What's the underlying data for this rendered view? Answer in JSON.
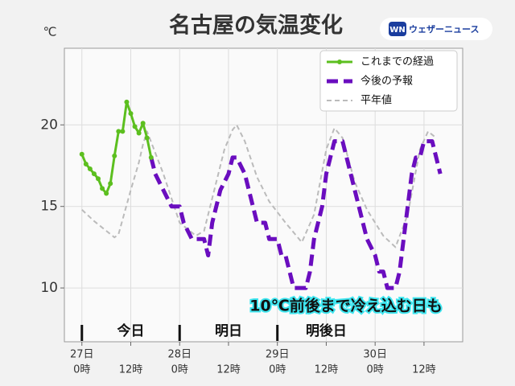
{
  "chart_data": {
    "type": "line",
    "title": "名古屋の気温変化",
    "y_unit": "℃",
    "brand": {
      "badge": "WN",
      "name": "ウェザーニュース"
    },
    "annotation": "10℃前後まで冷え込む日も",
    "xlim": [
      -4.3,
      93.5
    ],
    "ylim": [
      6.7,
      24.7
    ],
    "yticks": [
      10,
      15,
      20
    ],
    "xticks": [
      {
        "value": 0,
        "label": "0時"
      },
      {
        "value": 12,
        "label": "12時"
      },
      {
        "value": 24,
        "label": "0時"
      },
      {
        "value": 36,
        "label": "12時"
      },
      {
        "value": 48,
        "label": "0時"
      },
      {
        "value": 60,
        "label": "12時"
      },
      {
        "value": 72,
        "label": "0時"
      },
      {
        "value": 84,
        "label": "12時"
      }
    ],
    "day_ticks": [
      {
        "value": 0,
        "label": "27日"
      },
      {
        "value": 24,
        "label": "28日"
      },
      {
        "value": 48,
        "label": "29日"
      },
      {
        "value": 72,
        "label": "30日"
      }
    ],
    "bands": [
      {
        "label": "今日",
        "start": 0,
        "end": 24
      },
      {
        "label": "明日",
        "start": 24,
        "end": 48
      },
      {
        "label": "明後日",
        "start": 48,
        "end": 72
      }
    ],
    "grid": true,
    "legend": "upper right",
    "series": [
      {
        "name": "これまでの経過",
        "color": "#5cbf1f",
        "style": "solid",
        "markers": true,
        "x": [
          0,
          1,
          2,
          3,
          4,
          5,
          6,
          7,
          8,
          9,
          10,
          11,
          12,
          13,
          14,
          15,
          16,
          17
        ],
        "values": [
          18.2,
          17.6,
          17.3,
          17.0,
          16.7,
          16.1,
          15.8,
          16.4,
          18.1,
          19.6,
          19.6,
          21.4,
          20.7,
          19.9,
          19.5,
          20.1,
          19.2,
          18.0
        ]
      },
      {
        "name": "今後の予報",
        "color": "#6a0dbf",
        "style": "dashed-thick",
        "markers": false,
        "x": [
          17,
          18,
          20,
          22,
          24,
          25,
          27,
          30,
          31,
          32,
          34,
          36,
          37,
          38,
          40,
          42,
          43,
          45,
          46,
          48,
          49,
          50,
          51,
          52,
          55,
          56,
          57,
          59,
          60,
          61,
          62,
          64,
          65,
          67,
          69,
          70,
          72,
          73,
          74,
          75,
          77,
          78,
          79,
          80,
          81,
          82,
          83,
          84,
          86,
          88
        ],
        "values": [
          18,
          17,
          16,
          15,
          15,
          14,
          13,
          13,
          12,
          14,
          16,
          17,
          18,
          18,
          17,
          15,
          14,
          14,
          13,
          13,
          12,
          12,
          11,
          10,
          10,
          11,
          13,
          15,
          17,
          18,
          19,
          19,
          18,
          16,
          14,
          13,
          12,
          11,
          11,
          10,
          10,
          11,
          13,
          15,
          17,
          18,
          18,
          19,
          19,
          17
        ]
      },
      {
        "name": "平年値",
        "color": "#bbbbbb",
        "style": "dashed",
        "markers": false,
        "x": [
          0,
          3,
          6,
          8,
          9,
          12,
          14,
          15,
          16,
          20,
          24,
          28,
          30,
          32,
          35,
          37,
          38,
          40,
          43,
          46,
          50,
          54,
          57,
          60,
          62,
          64,
          67,
          70,
          74,
          77,
          80,
          83,
          85,
          87
        ],
        "values": [
          14.8,
          14.1,
          13.5,
          13.1,
          13.3,
          16.0,
          17.7,
          18.8,
          19.6,
          17.0,
          14.0,
          13.2,
          13.5,
          15.5,
          18.5,
          19.7,
          20.0,
          19.0,
          16.8,
          15.3,
          14.0,
          12.8,
          14.5,
          18.5,
          19.8,
          19.2,
          16.5,
          14.8,
          13.2,
          12.5,
          14.5,
          18.5,
          19.6,
          19.2
        ]
      }
    ]
  }
}
